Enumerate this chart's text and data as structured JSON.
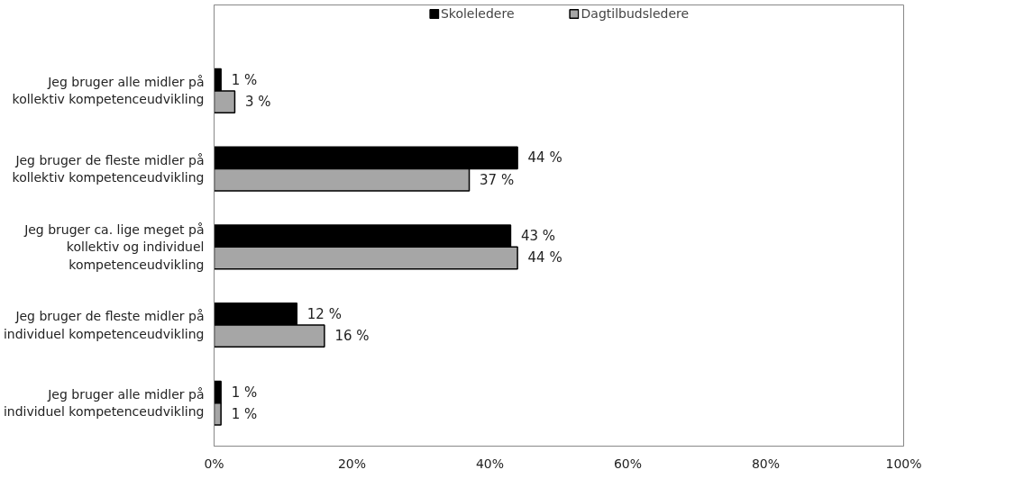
{
  "chart_data": {
    "type": "bar",
    "orientation": "horizontal",
    "categories": [
      "Jeg bruger alle midler på kollektiv kompetenceudvikling",
      "Jeg bruger de fleste midler på kollektiv kompetenceudvikling",
      "Jeg bruger ca. lige meget på kollektiv og individuel kompetenceudvikling",
      "Jeg bruger de fleste midler på individuel kompetenceudvikling",
      "Jeg bruger alle midler på individuel kompetenceudvikling"
    ],
    "series": [
      {
        "name": "Skoleledere",
        "color": "#000000",
        "values": [
          1,
          44,
          43,
          12,
          1
        ],
        "value_labels": [
          "1 %",
          "44 %",
          "43 %",
          "12 %",
          "1 %"
        ]
      },
      {
        "name": "Dagtilbudsledere",
        "color": "#a6a6a6",
        "values": [
          3,
          37,
          44,
          16,
          1
        ],
        "value_labels": [
          "3 %",
          "37 %",
          "44 %",
          "16 %",
          "1 %"
        ]
      }
    ],
    "xlim": [
      0,
      100
    ],
    "xticks": [
      {
        "value": 0,
        "label": "0%"
      },
      {
        "value": 20,
        "label": "20%"
      },
      {
        "value": 40,
        "label": "40%"
      },
      {
        "value": 60,
        "label": "60%"
      },
      {
        "value": 80,
        "label": "80%"
      },
      {
        "value": 100,
        "label": "100%"
      }
    ],
    "grid": false,
    "legend": "top"
  }
}
